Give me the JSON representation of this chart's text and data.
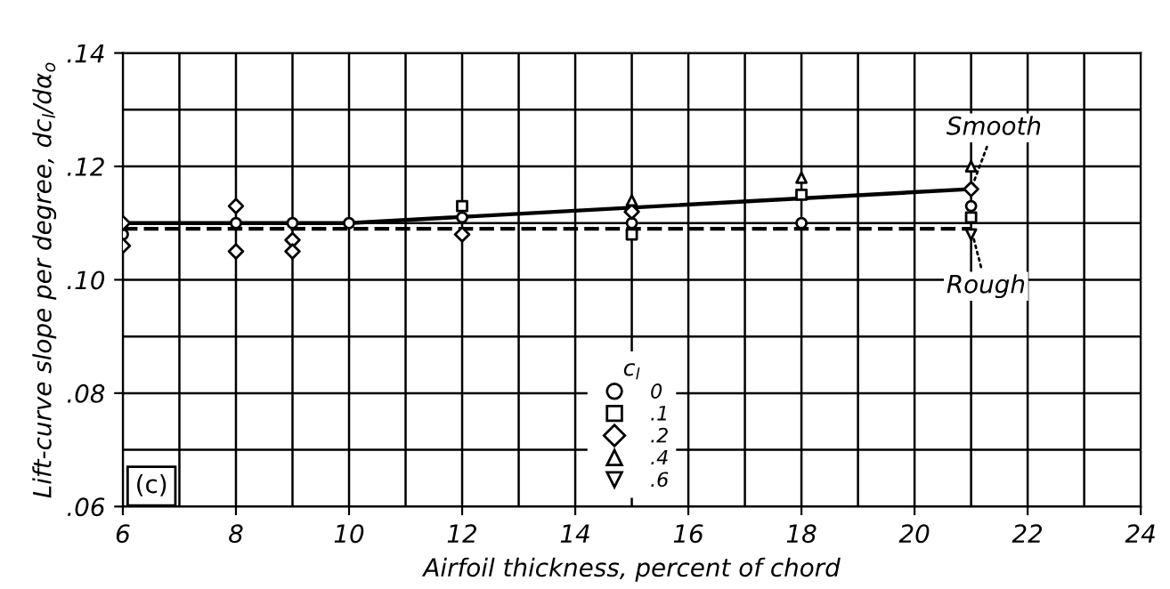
{
  "chart_data": {
    "type": "scatter",
    "xlabel": "Airfoil thickness, percent of chord",
    "ylabel": "Lift-curve slope per degree, dc$_{l}$/dα$_{o}$",
    "legend_title": "c$_{l}$",
    "xlim": [
      6,
      24
    ],
    "xticks": [
      6,
      8,
      10,
      12,
      14,
      16,
      18,
      20,
      22,
      24
    ],
    "ylim": [
      0.06,
      0.14
    ],
    "yticks": [
      {
        "value": 0.06,
        "label": ".06"
      },
      {
        "value": 0.08,
        "label": ".08"
      },
      {
        "value": 0.1,
        "label": ".10"
      },
      {
        "value": 0.12,
        "label": ".12"
      },
      {
        "value": 0.14,
        "label": ".14"
      }
    ],
    "grid": true,
    "legend": "bottom",
    "series": [
      {
        "name": "0",
        "color": "#000000",
        "marker": "circle",
        "x": [
          6,
          8,
          9,
          10,
          12,
          15,
          18,
          21
        ],
        "values": [
          0.108,
          0.11,
          0.11,
          0.11,
          0.111,
          0.11,
          0.11,
          0.113
        ]
      },
      {
        "name": ".1",
        "color": "#000000",
        "marker": "square",
        "x": [
          12,
          15,
          18,
          21
        ],
        "values": [
          0.113,
          0.108,
          0.115,
          0.111
        ]
      },
      {
        "name": ".2",
        "color": "#000000",
        "marker": "diamond",
        "x": [
          6,
          6,
          8,
          8,
          9,
          9,
          12,
          15,
          21
        ],
        "values": [
          0.11,
          0.106,
          0.113,
          0.105,
          0.107,
          0.105,
          0.108,
          0.112,
          0.116
        ]
      },
      {
        "name": ".4",
        "color": "#000000",
        "marker": "triangle",
        "x": [
          15,
          18,
          21
        ],
        "values": [
          0.114,
          0.118,
          0.12
        ]
      },
      {
        "name": ".6",
        "color": "#000000",
        "marker": "triangle_down",
        "x": [
          21
        ],
        "values": [
          0.108
        ]
      },
      {
        "type": "line",
        "color": "#000000",
        "line_style": "solid",
        "marker": "none",
        "x": [
          6,
          10,
          21
        ],
        "values": [
          0.11,
          0.11,
          0.116
        ]
      },
      {
        "type": "line",
        "color": "#000000",
        "line_style": "dashed",
        "marker": "none",
        "x": [
          6,
          21
        ],
        "values": [
          0.109,
          0.109
        ]
      }
    ],
    "annotations": [
      {
        "text": "Smooth",
        "x": 21,
        "y": 0.116
      },
      {
        "text": "Rough",
        "x": 21,
        "y": 0.109
      },
      "(c)"
    ]
  }
}
